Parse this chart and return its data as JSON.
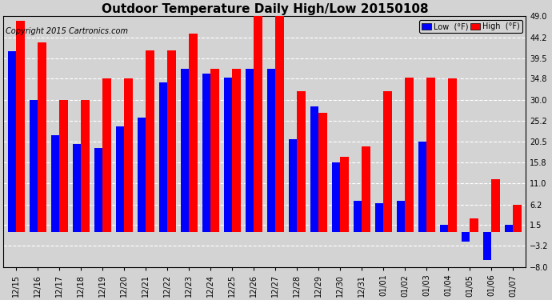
{
  "title": "Outdoor Temperature Daily High/Low 20150108",
  "copyright": "Copyright 2015 Cartronics.com",
  "legend_low": "Low  (°F)",
  "legend_high": "High  (°F)",
  "categories": [
    "12/15",
    "12/16",
    "12/17",
    "12/18",
    "12/19",
    "12/20",
    "12/21",
    "12/22",
    "12/23",
    "12/24",
    "12/25",
    "12/26",
    "12/27",
    "12/28",
    "12/29",
    "12/30",
    "12/31",
    "01/01",
    "01/02",
    "01/03",
    "01/04",
    "01/05",
    "01/06",
    "01/07"
  ],
  "high": [
    48.0,
    43.0,
    30.0,
    30.0,
    34.8,
    34.8,
    41.2,
    41.2,
    45.0,
    37.0,
    37.0,
    49.0,
    49.0,
    32.0,
    27.0,
    17.0,
    19.5,
    32.0,
    35.0,
    35.0,
    34.8,
    3.0,
    12.0,
    6.2
  ],
  "low": [
    41.0,
    30.0,
    22.0,
    20.0,
    19.0,
    24.0,
    26.0,
    34.0,
    37.0,
    36.0,
    35.0,
    37.0,
    37.0,
    21.0,
    28.5,
    15.8,
    7.0,
    6.5,
    7.0,
    20.5,
    1.5,
    -2.2,
    -6.5,
    1.5
  ],
  "ylim_min": -8.0,
  "ylim_max": 49.0,
  "yticks": [
    49.0,
    44.2,
    39.5,
    34.8,
    30.0,
    25.2,
    20.5,
    15.8,
    11.0,
    6.2,
    1.5,
    -3.2,
    -8.0
  ],
  "low_color": "#0000ff",
  "high_color": "#ff0000",
  "bg_color": "#d3d3d3",
  "plot_bg_color": "#d3d3d3",
  "grid_color": "#ffffff",
  "bar_width": 0.38,
  "title_fontsize": 11,
  "tick_fontsize": 7,
  "copyright_fontsize": 7
}
